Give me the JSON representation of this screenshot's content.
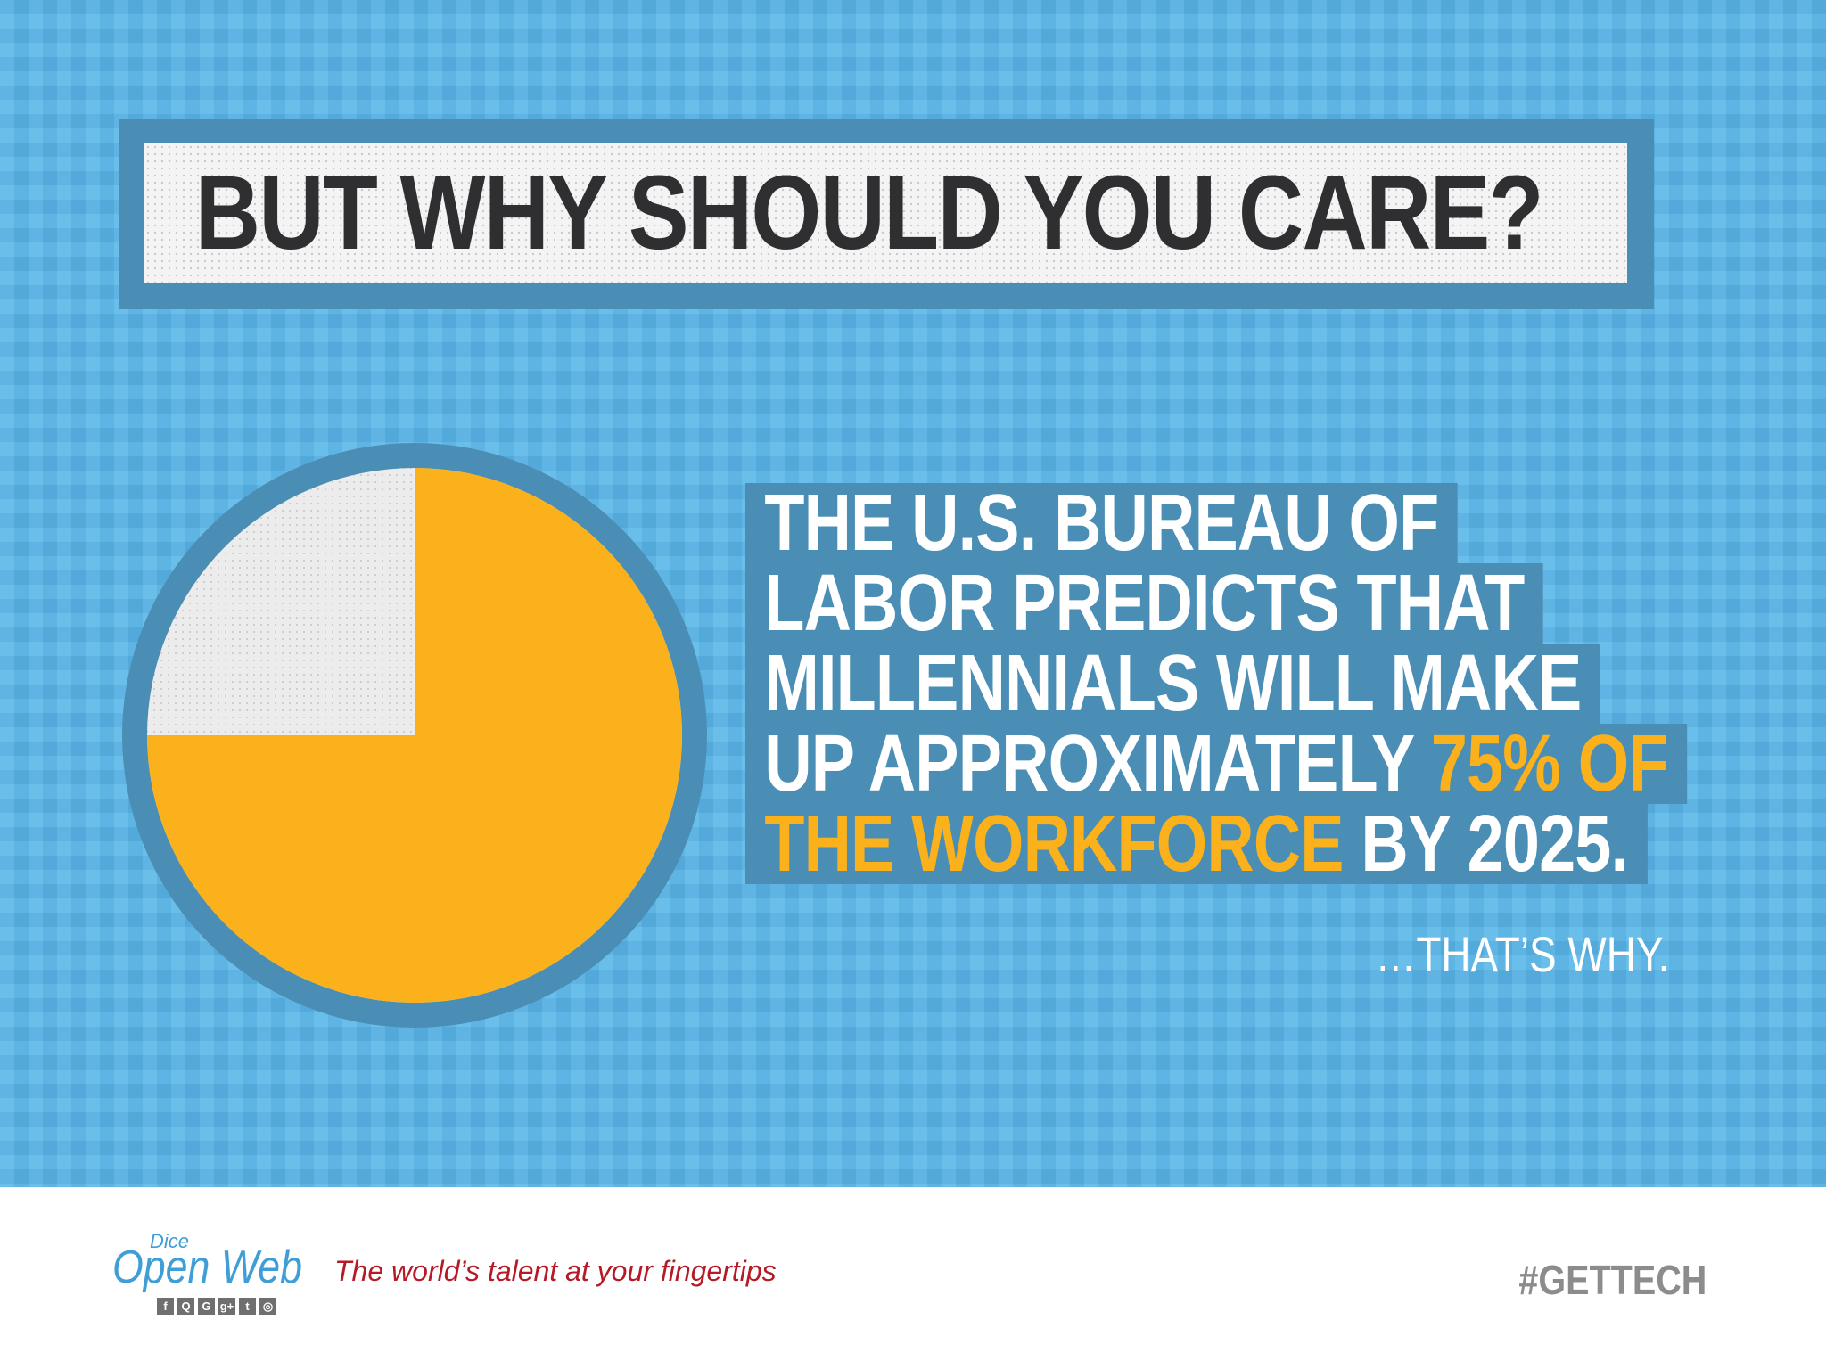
{
  "heading": "BUT WHY SHOULD YOU CARE?",
  "pie": {
    "highlight_percent": 75,
    "remainder_percent": 25,
    "colors": {
      "highlight": "#fbb11b",
      "remainder": "#ececec",
      "ring": "#4a8db5"
    }
  },
  "statement": {
    "line1": "THE U.S. BUREAU OF",
    "line2": "LABOR PREDICTS THAT",
    "line3": "MILLENNIALS WILL MAKE",
    "line4_plain": "UP APPROXIMATELY ",
    "line4_highlight": "75% OF",
    "line5_highlight": "THE WORKFORCE",
    "line5_plain": " BY 2025."
  },
  "conclusion": "…THAT’S WHY.",
  "footer": {
    "logo_small": "Dice",
    "logo_main": "Open Web",
    "social_icons": [
      "facebook-icon",
      "quora-icon",
      "github-icon",
      "google-plus-icon",
      "twitter-icon",
      "dribbble-icon"
    ],
    "social_glyphs": [
      "f",
      "Q",
      "G",
      "g+",
      "t",
      "◎"
    ],
    "tagline": "The world’s talent at your fingertips",
    "hashtag": "#GETTECH"
  },
  "colors": {
    "background": "#59b6e8",
    "frame": "#4a8db5",
    "accent": "#fbb11b",
    "tagline": "#b51a26",
    "logo": "#3f9ed6"
  }
}
